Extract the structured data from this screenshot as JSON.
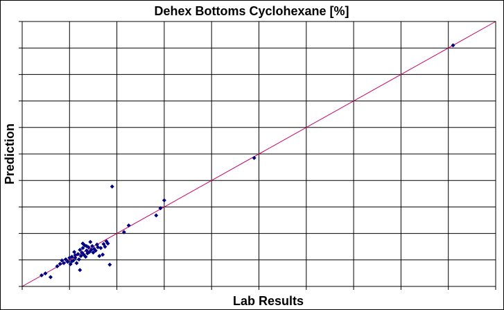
{
  "chart_data": {
    "type": "scatter",
    "title": "Dehex Bottoms Cyclohexane [%]",
    "xlabel": "Lab Results",
    "ylabel": "Prediction",
    "xlim": [
      0,
      10
    ],
    "ylim": [
      0,
      10
    ],
    "grid": true,
    "legend": "none",
    "tick_labels_shown": false,
    "colors": {
      "points": "#000080",
      "fit_line": "#cc0066",
      "grid": "#000000",
      "background": "#ffffff"
    },
    "fit_line": {
      "x": [
        0,
        10
      ],
      "y": [
        0,
        10
      ]
    },
    "series": [
      {
        "points": [
          [
            0.41,
            0.42
          ],
          [
            0.49,
            0.49
          ],
          [
            0.6,
            0.35
          ],
          [
            0.74,
            0.76
          ],
          [
            0.8,
            0.85
          ],
          [
            0.84,
            0.98
          ],
          [
            0.88,
            0.88
          ],
          [
            0.92,
            1.02
          ],
          [
            0.96,
            0.93
          ],
          [
            1.0,
            1.08
          ],
          [
            1.02,
            0.84
          ],
          [
            1.05,
            1.12
          ],
          [
            1.08,
            0.98
          ],
          [
            1.1,
            1.3
          ],
          [
            1.12,
            1.08
          ],
          [
            1.15,
            0.88
          ],
          [
            1.18,
            1.22
          ],
          [
            1.2,
            1.02
          ],
          [
            1.22,
            1.38
          ],
          [
            1.24,
            1.15
          ],
          [
            1.26,
            1.28
          ],
          [
            1.28,
            1.45
          ],
          [
            1.3,
            1.2
          ],
          [
            1.32,
            1.55
          ],
          [
            1.34,
            1.12
          ],
          [
            1.36,
            1.35
          ],
          [
            1.38,
            1.25
          ],
          [
            1.4,
            1.48
          ],
          [
            1.42,
            1.3
          ],
          [
            1.44,
            1.68
          ],
          [
            1.46,
            1.38
          ],
          [
            1.48,
            1.52
          ],
          [
            1.5,
            1.28
          ],
          [
            1.52,
            1.42
          ],
          [
            1.55,
            1.35
          ],
          [
            1.58,
            1.58
          ],
          [
            1.6,
            1.48
          ],
          [
            1.63,
            1.15
          ],
          [
            1.66,
            1.45
          ],
          [
            1.7,
            1.2
          ],
          [
            1.72,
            1.6
          ],
          [
            1.75,
            1.5
          ],
          [
            1.78,
            1.7
          ],
          [
            1.81,
            1.62
          ],
          [
            1.85,
            0.82
          ],
          [
            1.22,
            0.62
          ],
          [
            1.28,
            1.62
          ],
          [
            1.36,
            1.52
          ],
          [
            1.12,
            1.18
          ],
          [
            1.05,
            0.95
          ],
          [
            1.9,
            3.77
          ],
          [
            2.15,
            2.05
          ],
          [
            2.25,
            2.3
          ],
          [
            2.83,
            2.68
          ],
          [
            2.92,
            2.95
          ],
          [
            3.0,
            3.25
          ],
          [
            4.9,
            4.85
          ],
          [
            9.1,
            9.1
          ]
        ]
      }
    ]
  }
}
